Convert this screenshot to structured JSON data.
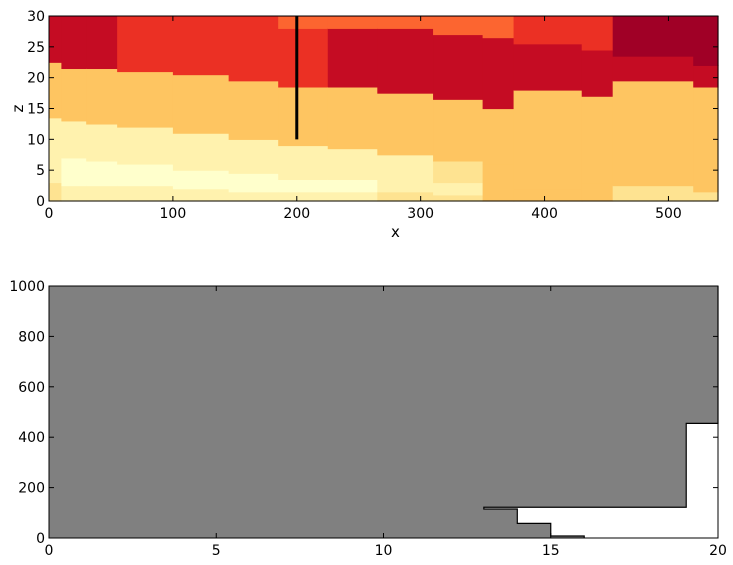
{
  "chart_data": [
    {
      "type": "heatmap",
      "title": "",
      "xlabel": "x",
      "ylabel": "z",
      "xlim": [
        0,
        540
      ],
      "ylim": [
        0,
        30
      ],
      "xticks": [
        0,
        100,
        200,
        300,
        400,
        500
      ],
      "yticks": [
        0,
        5,
        10,
        15,
        20,
        25,
        30
      ],
      "grid": false,
      "colormap": [
        "#ffffcc",
        "#fff2ae",
        "#fee391",
        "#fec561",
        "#fd9f44",
        "#fc6530",
        "#eb3024",
        "#c50c23",
        "#a00026",
        "#800026"
      ],
      "color_scale": [
        0,
        9
      ],
      "columns": [
        {
          "x0": 0,
          "x1": 10,
          "boundaries": [
            0,
            3,
            7.5,
            13.5,
            22.5,
            30
          ],
          "cells": [
            2,
            1,
            0.8,
            3,
            7,
            8
          ]
        },
        {
          "x0": 10,
          "x1": 30,
          "boundaries": [
            0,
            2.5,
            7,
            13,
            21.5,
            30
          ],
          "cells": [
            1,
            0,
            1,
            3,
            7,
            8
          ]
        },
        {
          "x0": 30,
          "x1": 55,
          "boundaries": [
            0,
            2.5,
            6.5,
            12.5,
            21.5,
            30
          ],
          "cells": [
            1,
            0,
            1,
            3,
            7,
            8
          ]
        },
        {
          "x0": 55,
          "x1": 100,
          "boundaries": [
            0,
            2.5,
            6,
            12,
            21,
            30
          ],
          "cells": [
            1,
            0,
            1,
            3,
            6,
            7
          ]
        },
        {
          "x0": 100,
          "x1": 145,
          "boundaries": [
            0,
            2,
            5,
            11,
            20.5,
            30
          ],
          "cells": [
            1,
            0,
            1,
            3,
            6,
            7
          ]
        },
        {
          "x0": 145,
          "x1": 185,
          "boundaries": [
            0,
            1.5,
            4.5,
            10,
            19.5,
            30
          ],
          "cells": [
            1,
            0,
            1,
            3,
            6,
            7
          ]
        },
        {
          "x0": 185,
          "x1": 225,
          "boundaries": [
            0,
            1.5,
            3.5,
            9,
            18.5,
            28,
            30
          ],
          "cells": [
            1,
            0,
            1,
            3,
            6,
            5,
            9
          ]
        },
        {
          "x0": 225,
          "x1": 265,
          "boundaries": [
            0,
            1.5,
            3.5,
            8.5,
            18.5,
            28,
            30
          ],
          "cells": [
            1,
            0,
            1,
            3,
            7,
            5,
            9
          ]
        },
        {
          "x0": 265,
          "x1": 310,
          "boundaries": [
            0,
            1.5,
            3.5,
            7.5,
            17.5,
            28,
            30
          ],
          "cells": [
            2,
            1,
            1,
            3,
            7,
            5,
            9
          ]
        },
        {
          "x0": 310,
          "x1": 350,
          "boundaries": [
            0,
            1,
            3,
            6.5,
            16.5,
            27,
            30
          ],
          "cells": [
            2,
            1,
            2,
            3,
            7,
            5,
            9
          ]
        },
        {
          "x0": 350,
          "x1": 375,
          "boundaries": [
            0,
            6,
            15,
            26.5,
            30
          ],
          "cells": [
            3,
            3,
            7,
            5,
            9
          ]
        },
        {
          "x0": 375,
          "x1": 430,
          "boundaries": [
            0,
            2,
            18,
            25.5,
            30
          ],
          "cells": [
            3,
            3,
            7,
            6,
            9
          ]
        },
        {
          "x0": 430,
          "x1": 455,
          "boundaries": [
            0,
            3,
            17,
            24.5,
            30
          ],
          "cells": [
            3,
            3,
            7,
            6,
            9
          ]
        },
        {
          "x0": 455,
          "x1": 520,
          "boundaries": [
            0,
            2.5,
            19.5,
            23.5,
            30
          ],
          "cells": [
            2,
            3,
            7,
            8,
            9
          ]
        },
        {
          "x0": 520,
          "x1": 540,
          "boundaries": [
            0,
            1.5,
            18.5,
            22,
            30
          ],
          "cells": [
            2,
            3,
            7,
            8,
            9
          ]
        }
      ],
      "annotations": [
        {
          "type": "vertical_line",
          "x": 200,
          "z_from": 10,
          "z_to": 30,
          "color": "#000000"
        }
      ]
    },
    {
      "type": "area",
      "title": "",
      "xlabel": "",
      "ylabel": "",
      "xlim": [
        0,
        20
      ],
      "ylim": [
        0,
        1000
      ],
      "xticks": [
        0,
        5,
        10,
        15,
        20
      ],
      "yticks": [
        0,
        200,
        400,
        600,
        800,
        1000
      ],
      "grid": false,
      "fill_color": "#808080",
      "edge_color": "#000000",
      "boundary": [
        [
          13,
          115
        ],
        [
          14,
          115
        ],
        [
          14,
          58
        ],
        [
          15,
          58
        ],
        [
          15,
          8
        ],
        [
          16,
          8
        ],
        [
          16,
          0
        ]
      ],
      "outline": [
        [
          13,
          115
        ],
        [
          13,
          122
        ],
        [
          19.05,
          122
        ],
        [
          19.05,
          455
        ],
        [
          20,
          455
        ],
        [
          20,
          1000
        ]
      ]
    }
  ]
}
